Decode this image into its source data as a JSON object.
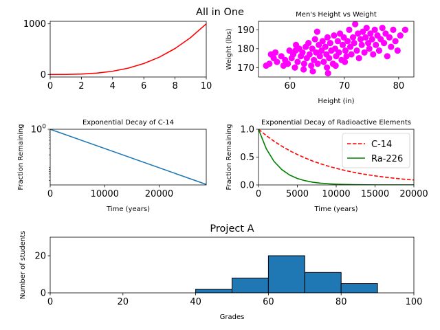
{
  "suptitle": "All in One",
  "chart_data": [
    {
      "id": "cubic",
      "type": "line",
      "title": "",
      "xlabel": "",
      "ylabel": "",
      "x": [
        0,
        1,
        2,
        3,
        4,
        5,
        6,
        7,
        8,
        9,
        10
      ],
      "series": [
        {
          "values": [
            0,
            1,
            8,
            27,
            64,
            125,
            216,
            343,
            512,
            729,
            1000
          ],
          "color": "#ff0000",
          "style": "solid"
        }
      ],
      "xlim": [
        0,
        10
      ],
      "ylim": [
        -50,
        1050
      ],
      "xticks": [
        0,
        2,
        4,
        6,
        8,
        10
      ],
      "yticks": [
        0,
        1000
      ],
      "grid": false
    },
    {
      "id": "height-weight",
      "type": "scatter",
      "title": "Men's Height vs Weight",
      "xlabel": "Height (in)",
      "ylabel": "Weight (lbs)",
      "color": "#ff00ff",
      "points": [
        [
          55.6,
          171
        ],
        [
          56.2,
          172
        ],
        [
          56.5,
          177
        ],
        [
          57.0,
          175
        ],
        [
          57.3,
          178
        ],
        [
          57.6,
          173
        ],
        [
          58.4,
          176
        ],
        [
          58.8,
          171
        ],
        [
          59.1,
          174
        ],
        [
          59.6,
          172
        ],
        [
          59.9,
          179
        ],
        [
          60.3,
          175
        ],
        [
          60.6,
          177
        ],
        [
          60.9,
          170
        ],
        [
          61.1,
          182
        ],
        [
          61.4,
          173
        ],
        [
          61.7,
          180
        ],
        [
          62.0,
          176
        ],
        [
          62.3,
          178
        ],
        [
          62.6,
          172
        ],
        [
          62.9,
          181
        ],
        [
          63.1,
          175
        ],
        [
          63.4,
          183
        ],
        [
          63.6,
          177
        ],
        [
          63.9,
          171
        ],
        [
          64.1,
          180
        ],
        [
          64.4,
          174
        ],
        [
          64.6,
          185
        ],
        [
          64.8,
          178
        ],
        [
          65.1,
          172
        ],
        [
          65.3,
          182
        ],
        [
          65.5,
          176
        ],
        [
          65.8,
          179
        ],
        [
          66.0,
          184
        ],
        [
          66.2,
          173
        ],
        [
          66.5,
          181
        ],
        [
          66.7,
          177
        ],
        [
          66.9,
          186
        ],
        [
          67.2,
          175
        ],
        [
          67.4,
          183
        ],
        [
          67.6,
          179
        ],
        [
          67.9,
          172
        ],
        [
          68.1,
          187
        ],
        [
          68.3,
          180
        ],
        [
          68.5,
          176
        ],
        [
          68.8,
          184
        ],
        [
          69.0,
          178
        ],
        [
          69.2,
          188
        ],
        [
          69.5,
          174
        ],
        [
          69.7,
          182
        ],
        [
          69.9,
          186
        ],
        [
          70.2,
          179
        ],
        [
          70.4,
          176
        ],
        [
          70.6,
          184
        ],
        [
          70.9,
          190
        ],
        [
          71.1,
          181
        ],
        [
          71.3,
          177
        ],
        [
          71.6,
          186
        ],
        [
          71.8,
          183
        ],
        [
          72.0,
          193
        ],
        [
          72.3,
          179
        ],
        [
          72.5,
          188
        ],
        [
          72.7,
          175
        ],
        [
          73.0,
          185
        ],
        [
          73.2,
          182
        ],
        [
          73.4,
          189
        ],
        [
          73.7,
          178
        ],
        [
          73.9,
          186
        ],
        [
          74.1,
          191
        ],
        [
          74.4,
          183
        ],
        [
          74.6,
          180
        ],
        [
          74.8,
          188
        ],
        [
          75.1,
          185
        ],
        [
          75.3,
          177
        ],
        [
          75.6,
          190
        ],
        [
          75.8,
          182
        ],
        [
          76.1,
          187
        ],
        [
          76.4,
          179
        ],
        [
          76.7,
          185
        ],
        [
          77.0,
          191
        ],
        [
          77.3,
          183
        ],
        [
          77.6,
          188
        ],
        [
          77.9,
          176
        ],
        [
          78.3,
          186
        ],
        [
          78.6,
          181
        ],
        [
          79.0,
          190
        ],
        [
          79.4,
          184
        ],
        [
          79.8,
          179
        ],
        [
          80.3,
          187
        ],
        [
          81.2,
          190
        ],
        [
          64.2,
          168
        ],
        [
          66.8,
          170
        ],
        [
          68.4,
          171
        ],
        [
          62.5,
          169
        ],
        [
          70.1,
          173
        ],
        [
          65.0,
          189
        ],
        [
          67.0,
          167
        ],
        [
          61.0,
          179
        ]
      ],
      "xlim": [
        54.2,
        82.8
      ],
      "ylim": [
        165,
        194.5
      ],
      "xticks": [
        60,
        70,
        80
      ],
      "yticks": [
        170,
        180,
        190
      ],
      "grid": false
    },
    {
      "id": "c14-log",
      "type": "line",
      "title": "Exponential Decay of C-14",
      "xlabel": "Time (years)",
      "ylabel": "Fraction Remaining",
      "x": [
        0,
        28650
      ],
      "series": [
        {
          "values": [
            1.0,
            0.031
          ],
          "color": "#1f77b4",
          "style": "solid"
        }
      ],
      "xlim": [
        0,
        28650
      ],
      "ylim": [
        0.03,
        1.0
      ],
      "log_y": true,
      "xticks": [
        0,
        10000,
        20000
      ],
      "yticks": [
        {
          "value": 1.0,
          "base": "10",
          "exp": "0"
        }
      ],
      "grid": false
    },
    {
      "id": "radioactive",
      "type": "line",
      "title": "Exponential Decay of Radioactive Elements",
      "xlabel": "Time (years)",
      "ylabel": "Fraction Remaining",
      "x": [
        0,
        1000,
        2000,
        3000,
        4000,
        5000,
        6000,
        7000,
        8000,
        9000,
        10000,
        11000,
        12000,
        13000,
        14000,
        15000,
        16000,
        17000,
        18000,
        19000,
        20000
      ],
      "series": [
        {
          "name": "C-14",
          "color": "#ff0000",
          "style": "dashed",
          "values": [
            1.0,
            0.886,
            0.785,
            0.696,
            0.616,
            0.546,
            0.484,
            0.428,
            0.38,
            0.336,
            0.298,
            0.264,
            0.234,
            0.207,
            0.184,
            0.163,
            0.144,
            0.128,
            0.113,
            0.1,
            0.089
          ]
        },
        {
          "name": "Ra-226",
          "color": "#008000",
          "style": "solid",
          "values": [
            1.0,
            0.65,
            0.423,
            0.275,
            0.179,
            0.116,
            0.076,
            0.049,
            0.032,
            0.021,
            0.0135,
            0.0088,
            0.0057,
            0.0037,
            0.0024,
            0.0016,
            0.001,
            0.0007,
            0.0004,
            0.0003,
            0.0002
          ]
        }
      ],
      "xlim": [
        0,
        20000
      ],
      "ylim": [
        0,
        1.0
      ],
      "xticks": [
        0,
        5000,
        10000,
        15000,
        20000
      ],
      "yticks": [
        0.0,
        0.5,
        1.0
      ],
      "yticklabels": [
        "0.0",
        "0.5",
        "1.0"
      ],
      "legend": "upper right",
      "grid": false
    },
    {
      "id": "grades",
      "type": "bar",
      "title": "Project A",
      "xlabel": "Grades",
      "ylabel": "Number of students",
      "bins": [
        [
          40,
          50
        ],
        [
          50,
          60
        ],
        [
          60,
          70
        ],
        [
          70,
          80
        ],
        [
          80,
          90
        ]
      ],
      "values": [
        2,
        8,
        20,
        11,
        5
      ],
      "color": "#1f77b4",
      "xlim": [
        0,
        100
      ],
      "ylim": [
        0,
        30
      ],
      "xticks": [
        0,
        20,
        40,
        60,
        80,
        100
      ],
      "yticks": [
        0,
        20
      ],
      "grid": false
    }
  ]
}
